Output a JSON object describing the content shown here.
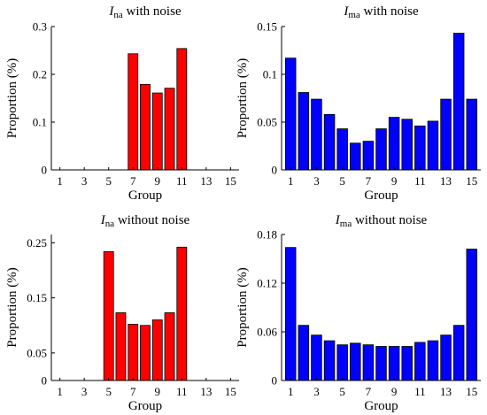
{
  "chart_data": [
    {
      "type": "bar",
      "title_var": "I",
      "title_sub": "na",
      "title_rest": " with noise",
      "xlabel": "Group",
      "ylabel": "Proportion (%)",
      "color": "#ff0000",
      "categories": [
        1,
        2,
        3,
        4,
        5,
        6,
        7,
        8,
        9,
        10,
        11,
        12,
        13,
        14,
        15
      ],
      "values": [
        0,
        0,
        0,
        0,
        0,
        0,
        0.243,
        0.179,
        0.161,
        0.171,
        0.254,
        0,
        0,
        0,
        0
      ],
      "xticks": [
        1,
        3,
        5,
        7,
        9,
        11,
        13,
        15
      ],
      "xtick_labels": [
        "1",
        "3",
        "5",
        "7",
        "9",
        "11",
        "13",
        "15"
      ],
      "yticks": [
        0,
        0.1,
        0.2,
        0.3
      ],
      "ytick_labels": [
        "0",
        "0.1",
        "0.2",
        "0.3"
      ],
      "ylim": [
        0,
        0.3
      ],
      "grid": false
    },
    {
      "type": "bar",
      "title_var": "I",
      "title_sub": "ma",
      "title_rest": " with noise",
      "xlabel": "Group",
      "ylabel": "Proportion (%)",
      "color": "#0000ff",
      "categories": [
        1,
        2,
        3,
        4,
        5,
        6,
        7,
        8,
        9,
        10,
        11,
        12,
        13,
        14,
        15
      ],
      "values": [
        0.117,
        0.081,
        0.074,
        0.058,
        0.043,
        0.028,
        0.03,
        0.043,
        0.055,
        0.053,
        0.046,
        0.051,
        0.074,
        0.143,
        0.074
      ],
      "xticks": [
        1,
        3,
        5,
        7,
        9,
        11,
        13,
        15
      ],
      "xtick_labels": [
        "1",
        "3",
        "5",
        "7",
        "9",
        "11",
        "13",
        "15"
      ],
      "yticks": [
        0,
        0.05,
        0.1,
        0.15
      ],
      "ytick_labels": [
        "0",
        "0.05",
        "0.1",
        "0.15"
      ],
      "ylim": [
        0,
        0.15
      ],
      "grid": false
    },
    {
      "type": "bar",
      "title_var": "I",
      "title_sub": "na",
      "title_rest": " without noise",
      "xlabel": "Group",
      "ylabel": "Proportion (%)",
      "color": "#ff0000",
      "categories": [
        1,
        2,
        3,
        4,
        5,
        6,
        7,
        8,
        9,
        10,
        11,
        12,
        13,
        14,
        15
      ],
      "values": [
        0,
        0,
        0,
        0,
        0.234,
        0.123,
        0.102,
        0.1,
        0.11,
        0.123,
        0.242,
        0,
        0,
        0,
        0
      ],
      "xticks": [
        1,
        3,
        5,
        7,
        9,
        11,
        13,
        15
      ],
      "xtick_labels": [
        "1",
        "3",
        "5",
        "7",
        "9",
        "11",
        "13",
        "15"
      ],
      "yticks": [
        0,
        0.05,
        0.15,
        0.25
      ],
      "ytick_labels": [
        "0",
        "0.05",
        "0.15",
        "0.25"
      ],
      "ylim": [
        0,
        0.265
      ],
      "grid": false
    },
    {
      "type": "bar",
      "title_var": "I",
      "title_sub": "ma",
      "title_rest": " without noise",
      "xlabel": "Group",
      "ylabel": "Proportion (%)",
      "color": "#0000ff",
      "categories": [
        1,
        2,
        3,
        4,
        5,
        6,
        7,
        8,
        9,
        10,
        11,
        12,
        13,
        14,
        15
      ],
      "values": [
        0.164,
        0.068,
        0.056,
        0.049,
        0.044,
        0.046,
        0.044,
        0.042,
        0.042,
        0.042,
        0.047,
        0.049,
        0.056,
        0.068,
        0.162
      ],
      "xticks": [
        1,
        3,
        5,
        7,
        9,
        11,
        13,
        15
      ],
      "xtick_labels": [
        "1",
        "3",
        "5",
        "7",
        "9",
        "11",
        "13",
        "15"
      ],
      "yticks": [
        0,
        0.06,
        0.12,
        0.18
      ],
      "ytick_labels": [
        "0",
        "0.06",
        "0.12",
        "0.18"
      ],
      "ylim": [
        0,
        0.18
      ],
      "grid": false
    }
  ]
}
